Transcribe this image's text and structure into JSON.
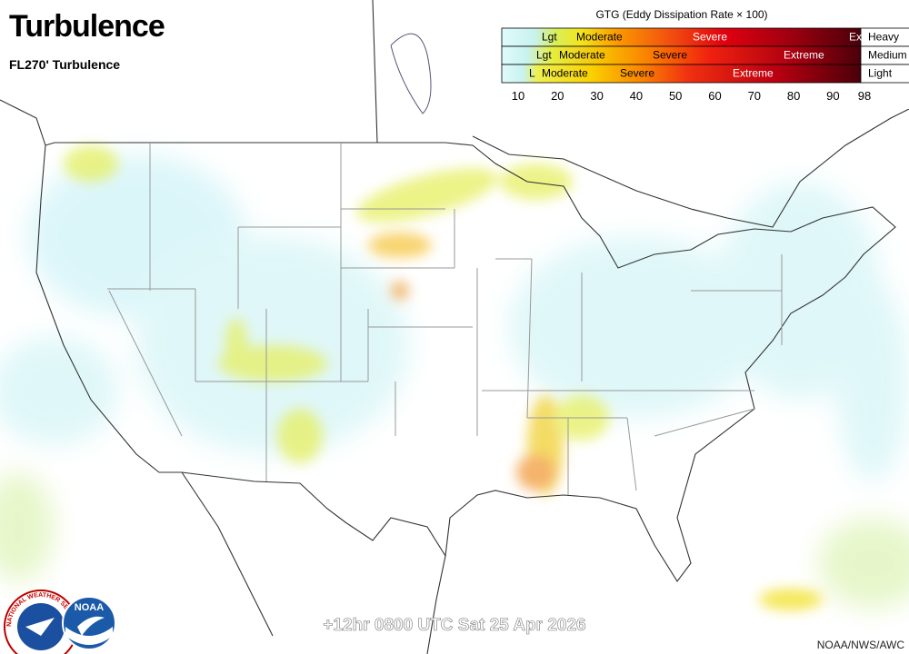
{
  "header": {
    "title": "Turbulence",
    "subtitle": "FL270' Turbulence"
  },
  "legend": {
    "title": "GTG (Eddy Dissipation Rate × 100)",
    "rows": [
      {
        "labels": [
          "Lgt",
          "Moderate",
          "Severe",
          "Ex"
        ],
        "level": "Heavy"
      },
      {
        "labels": [
          "Lgt",
          "Moderate",
          "Severe",
          "Extreme"
        ],
        "level": "Medium"
      },
      {
        "labels": [
          "L",
          "Moderate",
          "Severe",
          "Extreme"
        ],
        "level": "Light"
      }
    ],
    "scale": [
      10,
      20,
      30,
      40,
      50,
      60,
      70,
      80,
      90,
      98
    ]
  },
  "footer": {
    "valid_time": "+12hr 0800 UTC Sat 25 Apr 2026",
    "credit": "NOAA/NWS/AWC"
  },
  "logos": {
    "nws": "NATIONAL WEATHER SERVICE",
    "noaa": "NOAA"
  }
}
